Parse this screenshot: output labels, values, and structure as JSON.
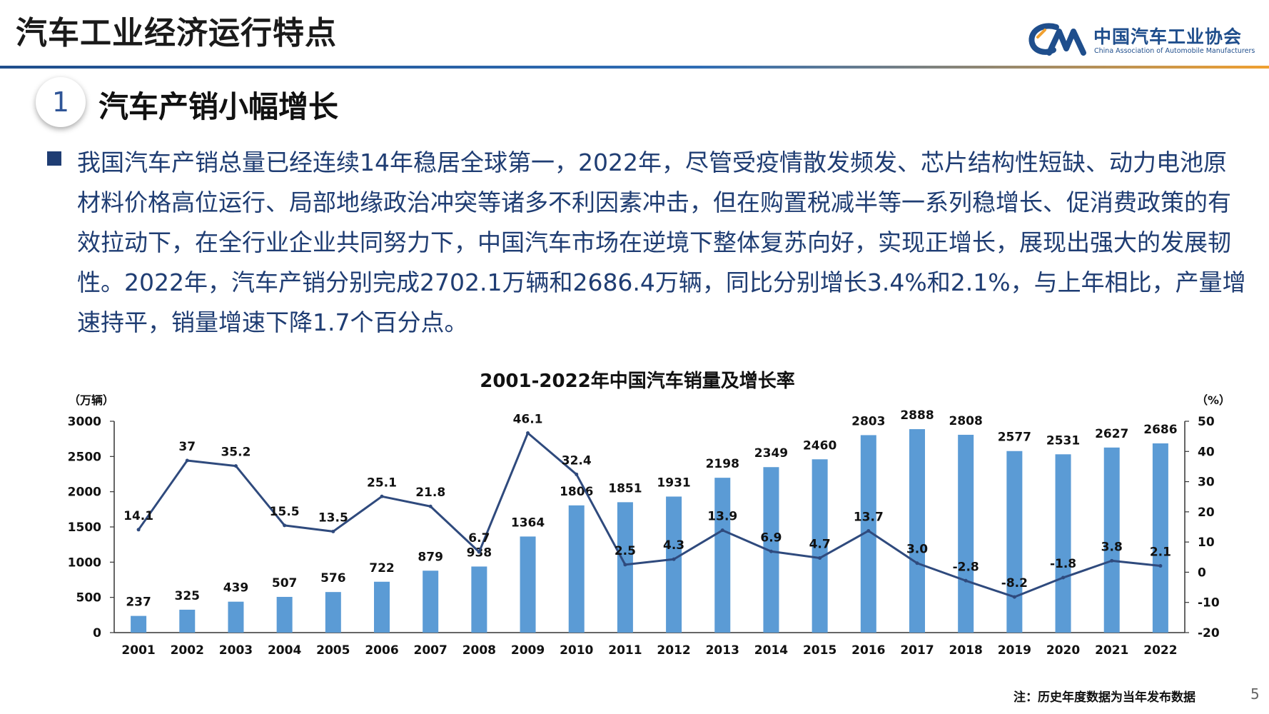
{
  "header": {
    "title": "汽车工业经济运行特点",
    "logo_cn": "中国汽车工业协会",
    "logo_en": "China Association of Automobile Manufacturers"
  },
  "section": {
    "number": "1",
    "title": "汽车产销小幅增长"
  },
  "bullet_text": "我国汽车产销总量已经连续14年稳居全球第一，2022年，尽管受疫情散发频发、芯片结构性短缺、动力电池原材料价格高位运行、局部地缘政治冲突等诸多不利因素冲击，但在购置税减半等一系列稳增长、促消费政策的有效拉动下，在全行业企业共同努力下，中国汽车市场在逆境下整体复苏向好，实现正增长，展现出强大的发展韧性。2022年，汽车产销分别完成2702.1万辆和2686.4万辆，同比分别增长3.4%和2.1%，与上年相比，产量增速持平，销量增速下降1.7个百分点。",
  "colors": {
    "bar": "#5b9bd5",
    "line": "#2f4a7d",
    "text_blue": "#1f3d73",
    "header_blue": "#1f4e8c"
  },
  "chart_data": {
    "type": "bar+line",
    "title": "2001-2022年中国汽车销量及增长率",
    "left_axis_unit": "（万辆）",
    "right_axis_unit": "（%）",
    "categories": [
      "2001",
      "2002",
      "2003",
      "2004",
      "2005",
      "2006",
      "2007",
      "2008",
      "2009",
      "2010",
      "2011",
      "2012",
      "2013",
      "2014",
      "2015",
      "2016",
      "2017",
      "2018",
      "2019",
      "2020",
      "2021",
      "2022"
    ],
    "series": [
      {
        "type": "bar",
        "axis": "left",
        "values": [
          237,
          325,
          439,
          507,
          576,
          722,
          879,
          938,
          1364,
          1806,
          1851,
          1931,
          2198,
          2349,
          2460,
          2803,
          2888,
          2808,
          2577,
          2531,
          2627,
          2686
        ],
        "labels": [
          "237",
          "325",
          "439",
          "507",
          "576",
          "722",
          "879",
          "938",
          "1364",
          "1806",
          "1851",
          "1931",
          "2198",
          "2349",
          "2460",
          "2803",
          "2888",
          "2808",
          "2577",
          "2531",
          "2627",
          "2686"
        ]
      },
      {
        "type": "line",
        "axis": "right",
        "values": [
          14.1,
          37,
          35.2,
          15.5,
          13.5,
          25.1,
          21.8,
          6.7,
          46.1,
          32.4,
          2.5,
          4.3,
          13.9,
          6.9,
          4.7,
          13.7,
          3.0,
          -2.8,
          -8.2,
          -1.8,
          3.8,
          2.1
        ],
        "labels": [
          "14.1",
          "37",
          "35.2",
          "15.5",
          "13.5",
          "25.1",
          "21.8",
          "6.7",
          "46.1",
          "32.4",
          "2.5",
          "4.3",
          "13.9",
          "6.9",
          "4.7",
          "13.7",
          "3.0",
          "-2.8",
          "-8.2",
          "-1.8",
          "3.8",
          "2.1"
        ]
      }
    ],
    "ylim_left": [
      0,
      3000
    ],
    "yticks_left": [
      "0",
      "500",
      "1000",
      "1500",
      "2000",
      "2500",
      "3000"
    ],
    "ylim_right": [
      -20,
      50
    ],
    "yticks_right": [
      "-20",
      "-10",
      "0",
      "10",
      "20",
      "30",
      "40",
      "50"
    ],
    "grid": false,
    "legend": "none"
  },
  "footnote": "注：历史年度数据为当年发布数据",
  "page_number": "5"
}
